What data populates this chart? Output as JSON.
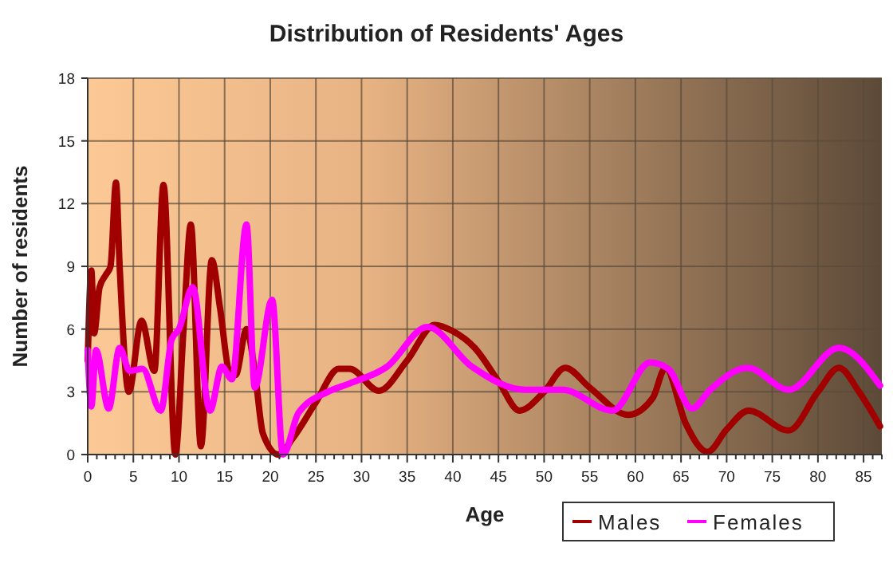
{
  "chart_data": {
    "type": "line",
    "title": "Distribution of Residents' Ages",
    "xlabel": "Age",
    "ylabel": "Number of residents",
    "xlim": [
      0,
      87
    ],
    "xticks": [
      0,
      5,
      10,
      15,
      20,
      25,
      30,
      35,
      40,
      45,
      50,
      55,
      60,
      65,
      70,
      75,
      80,
      85
    ],
    "ylim": [
      0,
      18
    ],
    "yticks": [
      0,
      3,
      6,
      9,
      12,
      15,
      18
    ],
    "grid": true,
    "legend": "bottom right",
    "marker": "none",
    "line_style": "solid",
    "series": [
      {
        "name": "Males",
        "color": "#a00000",
        "x": [
          0,
          0.4,
          0.7,
          1.3,
          2,
          2.5,
          3.1,
          3.5,
          4.5,
          5.9,
          7.3,
          8.3,
          9.6,
          10.5,
          11.3,
          12.4,
          13.6,
          14.5,
          15.5,
          16.2,
          17.4,
          18.3,
          19.2,
          20.9,
          22.5,
          25,
          27.5,
          28.7,
          31.9,
          35,
          38,
          40,
          42.4,
          45,
          47.3,
          50,
          52.3,
          55,
          59.2,
          61.9,
          63.3,
          65.5,
          67.9,
          70,
          72.4,
          76.8,
          80,
          82.3,
          84.5,
          86.8
        ],
        "values": [
          4.5,
          8.8,
          5.8,
          8,
          8.6,
          9,
          13,
          9,
          3,
          6.4,
          4,
          12.9,
          0,
          6,
          11,
          0.4,
          9.3,
          7,
          4,
          3.8,
          6,
          4,
          1,
          0,
          0.8,
          2.5,
          4.1,
          4.1,
          3.05,
          4.5,
          6.2,
          5.9,
          5.1,
          3.5,
          2.1,
          3,
          4.15,
          3.2,
          1.9,
          2.7,
          4.15,
          1.5,
          0.13,
          1.2,
          2.1,
          1.15,
          3,
          4.15,
          3,
          1.35
        ]
      },
      {
        "name": "Females",
        "color": "#ff00ff",
        "x": [
          0,
          0.4,
          0.9,
          2.3,
          3.5,
          4.6,
          6,
          8,
          9.2,
          10,
          11.5,
          13.4,
          14.7,
          15.8,
          17.4,
          18.3,
          20.2,
          21.4,
          23.1,
          26.3,
          28.7,
          32.8,
          37.2,
          42.1,
          47.9,
          52,
          57.5,
          61.6,
          63.6,
          66.2,
          68.2,
          72.3,
          76.8,
          82.3,
          86.8
        ],
        "values": [
          5,
          2.3,
          5,
          2.2,
          5.1,
          4,
          4.1,
          2.1,
          5.5,
          6,
          8,
          2.1,
          4.2,
          3.6,
          11,
          3.2,
          7.4,
          0,
          2,
          3,
          3.4,
          4.2,
          6.1,
          4.2,
          3.1,
          3.1,
          2.1,
          4.4,
          4.1,
          2.2,
          3.1,
          4.15,
          3.1,
          5.1,
          3.3
        ]
      }
    ]
  }
}
